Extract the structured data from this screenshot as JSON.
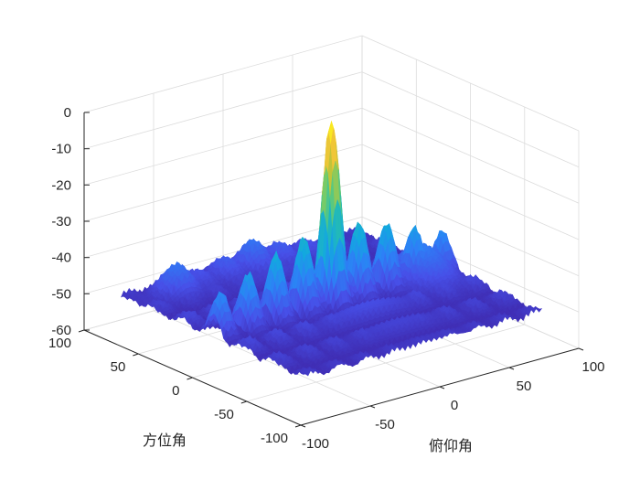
{
  "chart_data": {
    "type": "surface",
    "xlabel": "俯仰角",
    "ylabel": "方位角",
    "zlabel": "",
    "xlim": [
      -100,
      100
    ],
    "ylim": [
      -100,
      100
    ],
    "zlim": [
      -60,
      0
    ],
    "x_ticks": [
      "-100",
      "-50",
      "0",
      "50",
      "100"
    ],
    "y_ticks": [
      "-100",
      "-50",
      "0",
      "50",
      "100"
    ],
    "z_ticks": [
      "0",
      "-10",
      "-20",
      "-30",
      "-40",
      "-50",
      "-60"
    ],
    "grid": true,
    "colormap": "parula",
    "colors": {
      "low": "#3e26a8",
      "mid": "#2ab4d9",
      "high": "#f9fb15",
      "grid": "#dcdcdc",
      "axis": "#262626"
    },
    "features": {
      "main_lobe": {
        "x": 0,
        "y": 0,
        "z": 0
      },
      "floor_level": -51,
      "peak_rows": [
        {
          "y": 0,
          "peaks_x": [
            -40,
            -20,
            -10,
            0,
            10,
            20,
            40,
            65
          ],
          "peak_z": [
            -26,
            -21,
            -20,
            0,
            -20,
            -21,
            -20,
            -19
          ]
        },
        {
          "y": 70,
          "peaks_x": [
            -60,
            0
          ],
          "peak_z": [
            -30,
            -29
          ]
        }
      ]
    }
  }
}
